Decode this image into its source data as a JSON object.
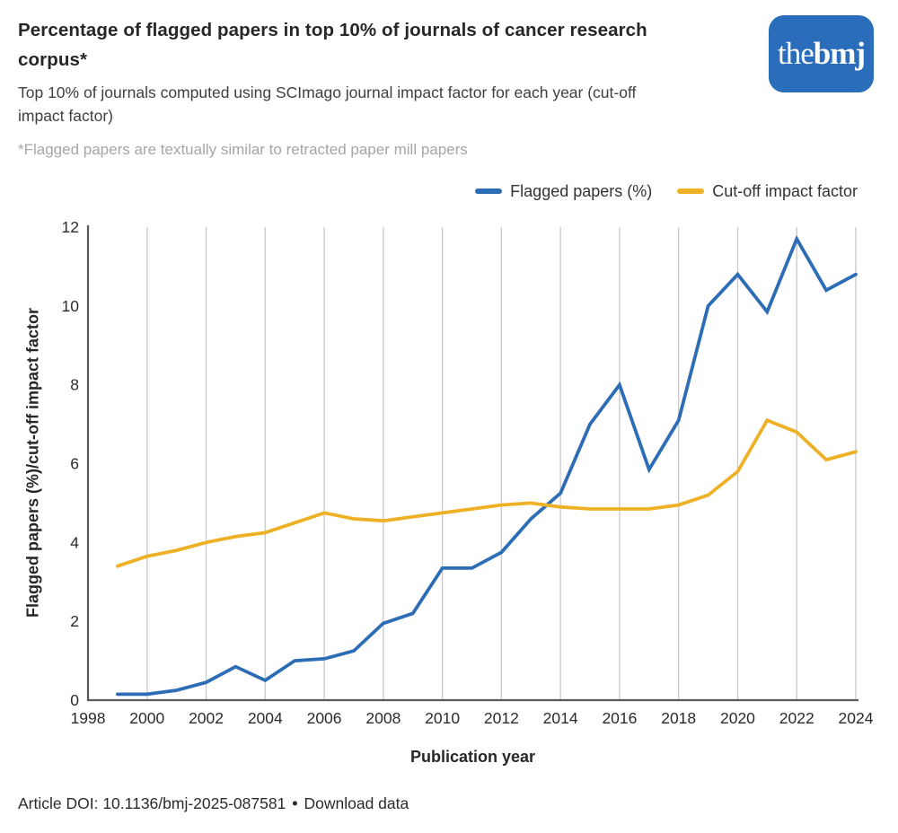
{
  "header": {
    "title": "Percentage of flagged papers in top 10% of journals of cancer research corpus*",
    "subtitle": "Top 10% of journals computed using SCImago journal impact factor for each year (cut-off impact factor)",
    "footnote": "*Flagged papers are textually similar to retracted paper mill papers",
    "logo": {
      "text_regular": "the",
      "text_bold": "bmj",
      "bg_color": "#2a6ebb",
      "text_color": "#ffffff"
    }
  },
  "legend": [
    {
      "label": "Flagged papers (%)",
      "color": "#2d6db6"
    },
    {
      "label": "Cut-off impact factor",
      "color": "#eeb024"
    }
  ],
  "chart_data": {
    "type": "line",
    "title": "Percentage of flagged papers in top 10% of journals of cancer research corpus*",
    "subtitle": "Top 10% of journals computed using SCImago journal impact factor for each year (cut-off impact factor)",
    "x": [
      1999,
      2000,
      2001,
      2002,
      2003,
      2004,
      2005,
      2006,
      2007,
      2008,
      2009,
      2010,
      2011,
      2012,
      2013,
      2014,
      2015,
      2016,
      2017,
      2018,
      2019,
      2020,
      2021,
      2022,
      2023,
      2024
    ],
    "series": [
      {
        "name": "Flagged papers (%)",
        "color": "#2d6db6",
        "values": [
          0.15,
          0.15,
          0.25,
          0.45,
          0.85,
          0.5,
          1.0,
          1.05,
          1.25,
          1.95,
          2.2,
          3.35,
          3.35,
          3.75,
          4.6,
          5.25,
          7.0,
          8.0,
          5.85,
          7.1,
          10.0,
          10.8,
          9.85,
          11.7,
          10.4,
          10.8
        ]
      },
      {
        "name": "Cut-off impact factor",
        "color": "#eeb024",
        "values": [
          3.4,
          3.65,
          3.8,
          4.0,
          4.15,
          4.25,
          4.5,
          4.75,
          4.6,
          4.55,
          4.65,
          4.75,
          4.85,
          4.95,
          5.0,
          4.9,
          4.85,
          4.85,
          4.85,
          4.95,
          5.2,
          5.8,
          7.1,
          6.8,
          6.1,
          6.3
        ]
      }
    ],
    "xlabel": "Publication year",
    "ylabel": "Flagged papers (%)/cut-off impact factor",
    "xlim": [
      1998,
      2024
    ],
    "ylim": [
      0,
      12
    ],
    "xticks": [
      1998,
      2000,
      2002,
      2004,
      2006,
      2008,
      2010,
      2012,
      2014,
      2016,
      2018,
      2020,
      2022,
      2024
    ],
    "yticks": [
      0,
      2,
      4,
      6,
      8,
      10,
      12
    ],
    "grid": "vertical-only",
    "grid_color": "#cacaca",
    "axis_color": "#59595b",
    "legend_position": "top-right"
  },
  "footer": {
    "doi_label": "Article DOI: 10.1136/bmj-2025-087581",
    "separator": "•",
    "download_label": "Download data"
  }
}
